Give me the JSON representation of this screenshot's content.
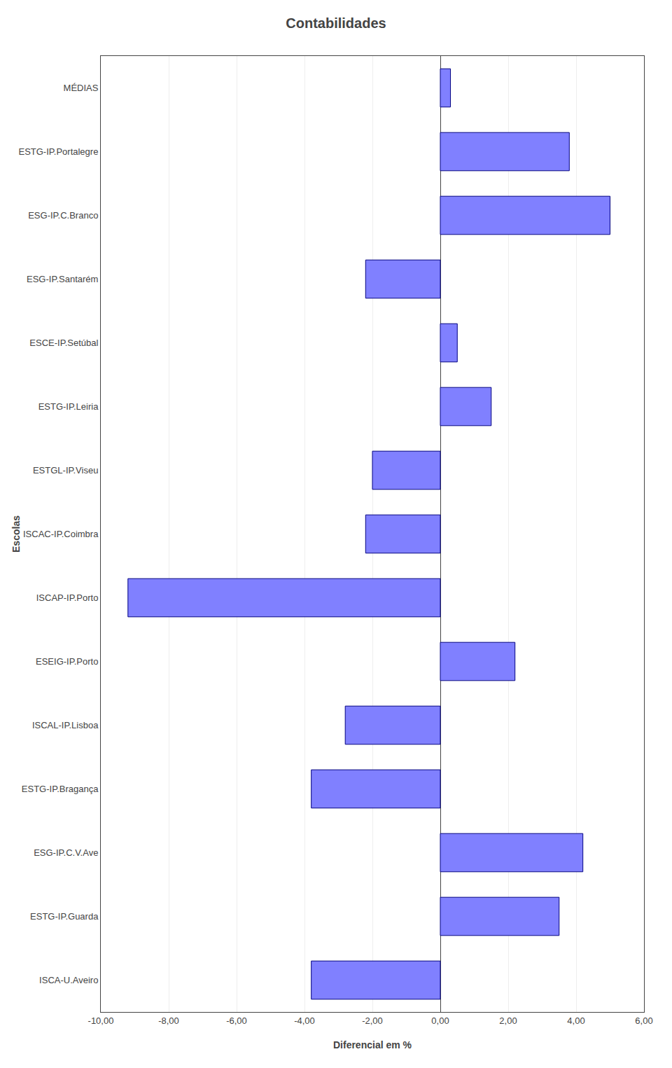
{
  "chart_data": {
    "type": "bar",
    "orientation": "horizontal",
    "title": "Contabilidades",
    "xlabel": "Diferencial em %",
    "ylabel": "Escolas",
    "categories": [
      "MÉDIAS",
      "ESTG-IP.Portalegre",
      "ESG-IP.C.Branco",
      "ESG-IP.Santarém",
      "ESCE-IP.Setúbal",
      "ESTG-IP.Leiria",
      "ESTGL-IP.Viseu",
      "ISCAC-IP.Coimbra",
      "ISCAP-IP.Porto",
      "ESEIG-IP.Porto",
      "ISCAL-IP.Lisboa",
      "ESTG-IP.Bragança",
      "ESG-IP.C.V.Ave",
      "ESTG-IP.Guarda",
      "ISCA-U.Aveiro"
    ],
    "values": [
      0.3,
      3.8,
      5.0,
      -2.2,
      0.5,
      1.5,
      -2.0,
      -2.2,
      -9.2,
      2.2,
      -2.8,
      -3.8,
      4.2,
      3.5,
      -3.8
    ],
    "color": "#8080FF",
    "xlim": [
      -10.0,
      6.0
    ],
    "xticks": [
      {
        "value": -10.0,
        "label": "-10,00"
      },
      {
        "value": -8.0,
        "label": "-8,00"
      },
      {
        "value": -6.0,
        "label": "-6,00"
      },
      {
        "value": -4.0,
        "label": "-4,00"
      },
      {
        "value": -2.0,
        "label": "-2,00"
      },
      {
        "value": 0.0,
        "label": "0,00"
      },
      {
        "value": 2.0,
        "label": "2,00"
      },
      {
        "value": 4.0,
        "label": "4,00"
      },
      {
        "value": 6.0,
        "label": "6,00"
      }
    ],
    "grid": true
  }
}
